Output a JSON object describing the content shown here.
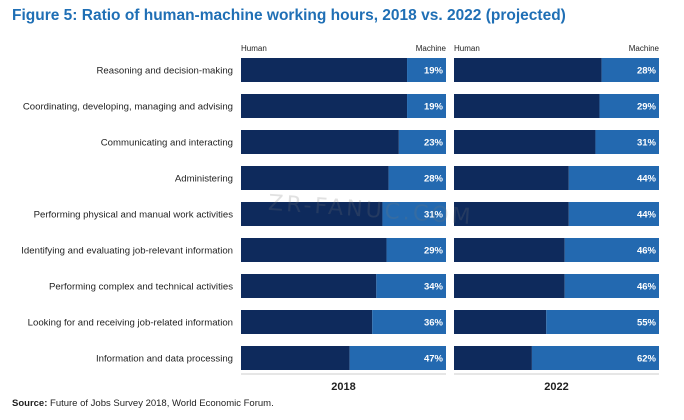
{
  "title": "Figure 5: Ratio of human-machine working hours, 2018 vs. 2022 (projected)",
  "source_label": "Source:",
  "source_text": " Future of Jobs Survey 2018, World Economic Forum.",
  "watermark": "ZR-FANUC.COM",
  "colors": {
    "title": "#1f6fb5",
    "human": "#0e2a5c",
    "machine": "#2369b0",
    "label_text": "#ffffff",
    "grid_line": "#cccccc"
  },
  "chart_data": {
    "type": "bar",
    "orientation": "horizontal",
    "stacked": true,
    "categories": [
      "Reasoning and decision-making",
      "Coordinating, developing, managing and advising",
      "Communicating and interacting",
      "Administering",
      "Performing physical and manual work activities",
      "Identifying and evaluating job-relevant information",
      "Performing complex and technical activities",
      "Looking for and receiving job-related information",
      "Information and data processing"
    ],
    "panels": [
      {
        "year": "2018",
        "left_label": "Human",
        "right_label": "Machine",
        "machine_pct": [
          19,
          19,
          23,
          28,
          31,
          29,
          34,
          36,
          47
        ]
      },
      {
        "year": "2022",
        "left_label": "Human",
        "right_label": "Machine",
        "machine_pct": [
          28,
          29,
          31,
          44,
          44,
          46,
          46,
          55,
          62
        ]
      }
    ],
    "xlim": [
      0,
      100
    ],
    "value_suffix": "%"
  }
}
